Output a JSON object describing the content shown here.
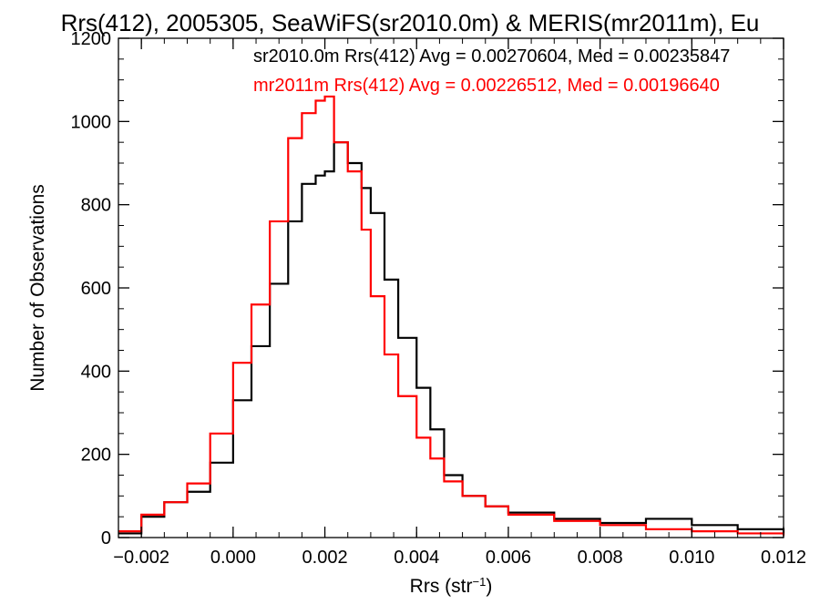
{
  "chart_data": {
    "type": "line",
    "title": "Rrs(412), 2005305, SeaWiFS(sr2010.0m) & MERIS(mr2011m), Eu",
    "xlabel": "Rrs (str",
    "xlabel_sup": "−1",
    "xlabel_close": ")",
    "ylabel": "Number of Observations",
    "xlim": [
      -0.0025,
      0.012
    ],
    "ylim": [
      0,
      1200
    ],
    "xticks": [
      -0.002,
      0.0,
      0.002,
      0.004,
      0.006,
      0.008,
      0.01,
      0.012
    ],
    "xtick_labels": [
      "−0.002",
      "0.000",
      "0.002",
      "0.004",
      "0.006",
      "0.008",
      "0.010",
      "0.012"
    ],
    "yticks": [
      0,
      200,
      400,
      600,
      800,
      1000,
      1200
    ],
    "ytick_labels": [
      "0",
      "200",
      "400",
      "600",
      "800",
      "1000",
      "1200"
    ],
    "grid": false,
    "series": [
      {
        "name": "sr2010.0m",
        "color": "#000000",
        "stats_text": "sr2010.0m Rrs(412) Avg = 0.00270604, Med = 0.00235847",
        "x": [
          -0.0025,
          -0.002,
          -0.0015,
          -0.001,
          -0.0005,
          0.0,
          0.0004,
          0.0008,
          0.0012,
          0.0015,
          0.0018,
          0.002,
          0.0022,
          0.0025,
          0.0028,
          0.003,
          0.0033,
          0.0036,
          0.004,
          0.0043,
          0.0046,
          0.005,
          0.0055,
          0.006,
          0.007,
          0.008,
          0.009,
          0.01,
          0.011,
          0.012
        ],
        "values": [
          10,
          50,
          85,
          110,
          180,
          330,
          460,
          610,
          760,
          850,
          870,
          880,
          950,
          900,
          840,
          780,
          620,
          480,
          360,
          260,
          150,
          100,
          75,
          60,
          45,
          35,
          45,
          30,
          20,
          10
        ]
      },
      {
        "name": "mr2011m",
        "color": "#ff0000",
        "stats_text": "mr2011m Rrs(412) Avg = 0.00226512, Med = 0.00196640",
        "x": [
          -0.0025,
          -0.002,
          -0.0015,
          -0.001,
          -0.0005,
          0.0,
          0.0004,
          0.0008,
          0.0012,
          0.0015,
          0.0018,
          0.002,
          0.0022,
          0.0025,
          0.0028,
          0.003,
          0.0033,
          0.0036,
          0.004,
          0.0043,
          0.0046,
          0.005,
          0.0055,
          0.006,
          0.007,
          0.008,
          0.009,
          0.01,
          0.011,
          0.012
        ],
        "values": [
          15,
          55,
          85,
          130,
          250,
          420,
          560,
          760,
          960,
          1020,
          1050,
          1060,
          950,
          880,
          740,
          580,
          440,
          340,
          240,
          190,
          135,
          100,
          75,
          55,
          40,
          30,
          20,
          15,
          10,
          5
        ]
      }
    ]
  }
}
